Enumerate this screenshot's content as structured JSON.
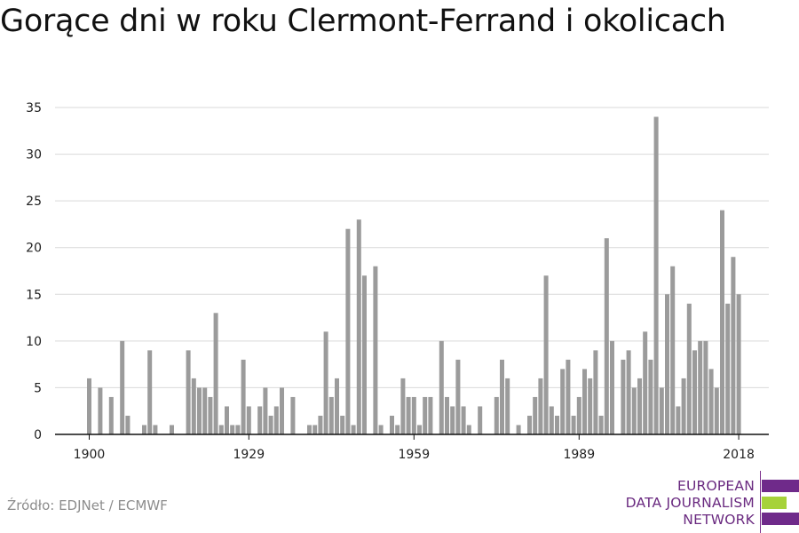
{
  "title": "Gorące dni w roku Clermont-Ferrand i okolicach",
  "source": "Źródło: EDJNet / ECMWF",
  "logo": {
    "lines": [
      "EUROPEAN",
      "DATA JOURNALISM",
      "NETWORK"
    ],
    "colors": {
      "text": "#6a2a80",
      "bar_purple": "#6f2a8a",
      "bar_green": "#a6d23a"
    }
  },
  "colors": {
    "bar": "#9b9b9b",
    "grid": "#d9d9d9",
    "axis": "#111111"
  },
  "chart_data": {
    "type": "bar",
    "title": "Gorące dni w roku Clermont-Ferrand i okolicach",
    "xlabel": "",
    "ylabel": "",
    "x_start": 1900,
    "x_ticks": [
      1900,
      1929,
      1959,
      1989,
      2018
    ],
    "y_ticks": [
      0,
      5,
      10,
      15,
      20,
      25,
      30,
      35
    ],
    "ylim": [
      0,
      35
    ],
    "grid": true,
    "values": [
      6,
      0,
      5,
      0,
      4,
      0,
      10,
      2,
      0,
      0,
      1,
      9,
      1,
      0,
      0,
      1,
      0,
      0,
      9,
      6,
      5,
      5,
      4,
      13,
      1,
      3,
      1,
      1,
      8,
      3,
      0,
      3,
      5,
      2,
      3,
      5,
      0,
      4,
      0,
      0,
      1,
      1,
      2,
      11,
      4,
      6,
      2,
      22,
      1,
      23,
      17,
      0,
      18,
      1,
      0,
      2,
      1,
      6,
      4,
      4,
      1,
      4,
      4,
      0,
      10,
      4,
      3,
      8,
      3,
      1,
      0,
      3,
      0,
      0,
      4,
      8,
      6,
      0,
      1,
      0,
      2,
      4,
      6,
      17,
      3,
      2,
      7,
      8,
      2,
      4,
      7,
      6,
      9,
      2,
      21,
      10,
      0,
      8,
      9,
      5,
      6,
      11,
      8,
      34,
      5,
      15,
      18,
      3,
      6,
      14,
      9,
      10,
      10,
      7,
      5,
      24,
      14,
      19,
      15
    ]
  }
}
